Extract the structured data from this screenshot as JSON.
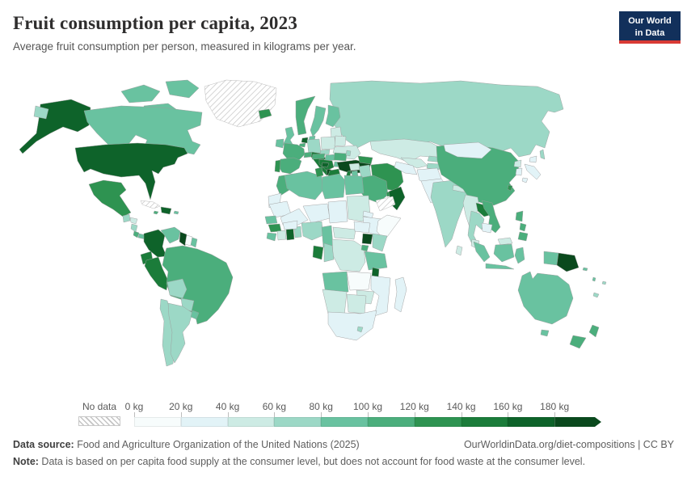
{
  "header": {
    "title": "Fruit consumption per capita, 2023",
    "subtitle": "Average fruit consumption per person, measured in kilograms per year.",
    "logo": {
      "line1": "Our World",
      "line2": "in Data",
      "bg_color": "#12305b",
      "accent_color": "#d93a35"
    }
  },
  "legend": {
    "no_data_label": "No data",
    "tick_labels": [
      "0 kg",
      "20 kg",
      "40 kg",
      "60 kg",
      "80 kg",
      "100 kg",
      "120 kg",
      "140 kg",
      "160 kg",
      "180 kg"
    ]
  },
  "footer": {
    "source_label": "Data source:",
    "source_text": " Food and Agriculture Organization of the United Nations (2025)",
    "link_text": "OurWorldinData.org/diet-compositions | CC BY",
    "note_label": "Note:",
    "note_text": " Data is based on per capita food supply at the consumer level, but does not account for food waste at the consumer level."
  },
  "map": {
    "ocean_color": "#ffffff",
    "border_color": "#9c9c9c",
    "palette": [
      "#f7fcfc",
      "#e2f3f7",
      "#cdebe4",
      "#9cd8c6",
      "#69c2a0",
      "#4bae7c",
      "#2e9351",
      "#1b7c3a",
      "#0e632a",
      "#0a491d"
    ],
    "bin_ranges": [
      "0-20 kg",
      "20-40 kg",
      "40-60 kg",
      "60-80 kg",
      "80-100 kg",
      "100-120 kg",
      "120-140 kg",
      "140-160 kg",
      "160-180 kg",
      "180+ kg"
    ],
    "countries": [
      {
        "id": "greenland",
        "name": "Greenland",
        "bin": "nodata"
      },
      {
        "id": "canada",
        "name": "Canada",
        "bin": 4
      },
      {
        "id": "alaska",
        "name": "United States (Alaska)",
        "bin": 8
      },
      {
        "id": "usa",
        "name": "United States",
        "bin": 8
      },
      {
        "id": "chukotka",
        "name": "Russia (Chukotka)",
        "bin": 3
      },
      {
        "id": "mexico",
        "name": "Mexico",
        "bin": 6
      },
      {
        "id": "guatemala",
        "name": "Guatemala",
        "bin": 3
      },
      {
        "id": "honduras",
        "name": "Honduras",
        "bin": 2
      },
      {
        "id": "nicaragua",
        "name": "Nicaragua",
        "bin": 3
      },
      {
        "id": "costarica",
        "name": "Costa Rica",
        "bin": 5
      },
      {
        "id": "panama",
        "name": "Panama",
        "bin": 4
      },
      {
        "id": "cuba",
        "name": "Cuba",
        "bin": "nodata"
      },
      {
        "id": "jamaica",
        "name": "Jamaica",
        "bin": 5
      },
      {
        "id": "hispaniola",
        "name": "Dominican Republic / Haiti",
        "bin": 8
      },
      {
        "id": "puertorico",
        "name": "Puerto Rico",
        "bin": 4
      },
      {
        "id": "colombia",
        "name": "Colombia",
        "bin": 8
      },
      {
        "id": "venezuela",
        "name": "Venezuela",
        "bin": 4
      },
      {
        "id": "guyana",
        "name": "Guyana",
        "bin": 9
      },
      {
        "id": "suriname",
        "name": "Suriname",
        "bin": 0
      },
      {
        "id": "frguiana",
        "name": "French Guiana",
        "bin": 4
      },
      {
        "id": "ecuador",
        "name": "Ecuador",
        "bin": 7
      },
      {
        "id": "peru",
        "name": "Peru",
        "bin": 7
      },
      {
        "id": "brazil",
        "name": "Brazil",
        "bin": 5
      },
      {
        "id": "bolivia",
        "name": "Bolivia",
        "bin": 3
      },
      {
        "id": "paraguay",
        "name": "Paraguay",
        "bin": 3
      },
      {
        "id": "chile",
        "name": "Chile",
        "bin": 3
      },
      {
        "id": "argentina",
        "name": "Argentina",
        "bin": 3
      },
      {
        "id": "uruguay",
        "name": "Uruguay",
        "bin": 4
      },
      {
        "id": "iceland",
        "name": "Iceland",
        "bin": 6
      },
      {
        "id": "ireland",
        "name": "Ireland",
        "bin": 4
      },
      {
        "id": "uk",
        "name": "United Kingdom",
        "bin": 4
      },
      {
        "id": "norway",
        "name": "Norway",
        "bin": 5
      },
      {
        "id": "sweden",
        "name": "Sweden",
        "bin": 4
      },
      {
        "id": "finland",
        "name": "Finland",
        "bin": 4
      },
      {
        "id": "denmark",
        "name": "Denmark",
        "bin": 4
      },
      {
        "id": "baltics",
        "name": "Baltic states",
        "bin": 2
      },
      {
        "id": "netherlands",
        "name": "Netherlands",
        "bin": 8
      },
      {
        "id": "belgium",
        "name": "Belgium",
        "bin": 5
      },
      {
        "id": "germany",
        "name": "Germany",
        "bin": 3
      },
      {
        "id": "poland",
        "name": "Poland",
        "bin": 2
      },
      {
        "id": "belarus",
        "name": "Belarus",
        "bin": 2
      },
      {
        "id": "ukraine",
        "name": "Ukraine",
        "bin": 2
      },
      {
        "id": "france",
        "name": "France",
        "bin": 5
      },
      {
        "id": "spain",
        "name": "Spain",
        "bin": 5
      },
      {
        "id": "portugal",
        "name": "Portugal",
        "bin": 6
      },
      {
        "id": "italy",
        "name": "Italy",
        "bin": 7
      },
      {
        "id": "switzerland",
        "name": "Switzerland",
        "bin": 5
      },
      {
        "id": "czech",
        "name": "Czechia",
        "bin": 3
      },
      {
        "id": "austria",
        "name": "Austria",
        "bin": 5
      },
      {
        "id": "hungary",
        "name": "Hungary",
        "bin": 4
      },
      {
        "id": "romania",
        "name": "Romania",
        "bin": 5
      },
      {
        "id": "balkans",
        "name": "Croatia / Serbia",
        "bin": 7
      },
      {
        "id": "bosnia",
        "name": "Bosnia and Herzegovina",
        "bin": 8
      },
      {
        "id": "albania",
        "name": "Albania",
        "bin": 9
      },
      {
        "id": "greece",
        "name": "Greece",
        "bin": 7
      },
      {
        "id": "bulgaria",
        "name": "Bulgaria",
        "bin": 4
      },
      {
        "id": "moldova",
        "name": "Moldova",
        "bin": 3
      },
      {
        "id": "turkey",
        "name": "Turkey",
        "bin": 9
      },
      {
        "id": "russia",
        "name": "Russia",
        "bin": 3
      },
      {
        "id": "sakhalin",
        "name": "Russia (Sakhalin)",
        "bin": 3
      },
      {
        "id": "caucasus",
        "name": "Caucasus states",
        "bin": 6
      },
      {
        "id": "syria",
        "name": "Syria",
        "bin": 2
      },
      {
        "id": "israel",
        "name": "Israel",
        "bin": 7
      },
      {
        "id": "jordan",
        "name": "Jordan",
        "bin": 4
      },
      {
        "id": "iraq",
        "name": "Iraq",
        "bin": 3
      },
      {
        "id": "iran",
        "name": "Iran",
        "bin": 6
      },
      {
        "id": "saudi",
        "name": "Saudi Arabia",
        "bin": 5
      },
      {
        "id": "yemen",
        "name": "Yemen",
        "bin": "nodata"
      },
      {
        "id": "oman",
        "name": "Oman",
        "bin": 8
      },
      {
        "id": "uae",
        "name": "United Arab Emirates",
        "bin": 6
      },
      {
        "id": "kazakhstan",
        "name": "Kazakhstan",
        "bin": 2
      },
      {
        "id": "uzbekistan",
        "name": "Uzbekistan",
        "bin": 2
      },
      {
        "id": "turkmenistan",
        "name": "Turkmenistan",
        "bin": 1
      },
      {
        "id": "kyrgyzstan",
        "name": "Kyrgyzstan",
        "bin": 3
      },
      {
        "id": "tajikistan",
        "name": "Tajikistan",
        "bin": 3
      },
      {
        "id": "afghanistan",
        "name": "Afghanistan",
        "bin": 1
      },
      {
        "id": "pakistan",
        "name": "Pakistan",
        "bin": 1
      },
      {
        "id": "india",
        "name": "India",
        "bin": 3
      },
      {
        "id": "nepal",
        "name": "Nepal",
        "bin": 2
      },
      {
        "id": "bangladesh",
        "name": "Bangladesh",
        "bin": 1
      },
      {
        "id": "srilanka",
        "name": "Sri Lanka",
        "bin": 2
      },
      {
        "id": "china",
        "name": "China",
        "bin": 5
      },
      {
        "id": "mongolia",
        "name": "Mongolia",
        "bin": 1
      },
      {
        "id": "nkorea",
        "name": "North Korea",
        "bin": 2
      },
      {
        "id": "skorea",
        "name": "South Korea",
        "bin": 1
      },
      {
        "id": "japan",
        "name": "Japan",
        "bin": 1
      },
      {
        "id": "taiwan",
        "name": "Taiwan",
        "bin": 6
      },
      {
        "id": "myanmar",
        "name": "Myanmar",
        "bin": 2
      },
      {
        "id": "laos",
        "name": "Laos",
        "bin": 7
      },
      {
        "id": "vietnam",
        "name": "Vietnam",
        "bin": 5
      },
      {
        "id": "thailand",
        "name": "Thailand",
        "bin": 3
      },
      {
        "id": "cambodia",
        "name": "Cambodia",
        "bin": 1
      },
      {
        "id": "malaysia",
        "name": "Malaysia",
        "bin": 2
      },
      {
        "id": "indonesia",
        "name": "Indonesia",
        "bin": 4
      },
      {
        "id": "png",
        "name": "Papua New Guinea",
        "bin": 9
      },
      {
        "id": "philippines",
        "name": "Philippines",
        "bin": 5
      },
      {
        "id": "morocco",
        "name": "Morocco",
        "bin": 5
      },
      {
        "id": "wsahara",
        "name": "Western Sahara",
        "bin": 1
      },
      {
        "id": "algeria",
        "name": "Algeria",
        "bin": 4
      },
      {
        "id": "tunisia",
        "name": "Tunisia",
        "bin": 6
      },
      {
        "id": "libya",
        "name": "Libya",
        "bin": 4
      },
      {
        "id": "egypt",
        "name": "Egypt",
        "bin": 4
      },
      {
        "id": "mauritania",
        "name": "Mauritania",
        "bin": 1
      },
      {
        "id": "mali",
        "name": "Mali",
        "bin": 1
      },
      {
        "id": "niger",
        "name": "Niger",
        "bin": 1
      },
      {
        "id": "chad",
        "name": "Chad",
        "bin": 1
      },
      {
        "id": "sudan",
        "name": "Sudan",
        "bin": 2
      },
      {
        "id": "eritrea",
        "name": "Eritrea",
        "bin": 1
      },
      {
        "id": "ethiopia",
        "name": "Ethiopia",
        "bin": 1
      },
      {
        "id": "somalia",
        "name": "Somalia",
        "bin": 0
      },
      {
        "id": "senegal",
        "name": "Senegal",
        "bin": 4
      },
      {
        "id": "guinea",
        "name": "Guinea",
        "bin": 6
      },
      {
        "id": "sierraleone",
        "name": "Sierra Leone / Liberia",
        "bin": 4
      },
      {
        "id": "ivorycoast",
        "name": "Cote d'Ivoire",
        "bin": 2
      },
      {
        "id": "ghana",
        "name": "Ghana",
        "bin": 8
      },
      {
        "id": "togobenin",
        "name": "Togo / Benin",
        "bin": 3
      },
      {
        "id": "burkina",
        "name": "Burkina Faso",
        "bin": 1
      },
      {
        "id": "nigeria",
        "name": "Nigeria",
        "bin": 3
      },
      {
        "id": "cameroon",
        "name": "Cameroon",
        "bin": 4
      },
      {
        "id": "car",
        "name": "Central African Republic",
        "bin": 2
      },
      {
        "id": "ssudan",
        "name": "South Sudan",
        "bin": 1
      },
      {
        "id": "uganda",
        "name": "Uganda",
        "bin": 9
      },
      {
        "id": "kenya",
        "name": "Kenya",
        "bin": 3
      },
      {
        "id": "rwanda",
        "name": "Rwanda / Burundi",
        "bin": 5
      },
      {
        "id": "drc",
        "name": "Democratic Republic of Congo",
        "bin": 2
      },
      {
        "id": "gabon",
        "name": "Gabon",
        "bin": 7
      },
      {
        "id": "congo",
        "name": "Congo",
        "bin": 3
      },
      {
        "id": "tanzania",
        "name": "Tanzania",
        "bin": 4
      },
      {
        "id": "angola",
        "name": "Angola",
        "bin": 4
      },
      {
        "id": "zambia",
        "name": "Zambia",
        "bin": 0
      },
      {
        "id": "malawi",
        "name": "Malawi",
        "bin": 8
      },
      {
        "id": "mozambique",
        "name": "Mozambique",
        "bin": 1
      },
      {
        "id": "zimbabwe",
        "name": "Zimbabwe",
        "bin": 2
      },
      {
        "id": "botswana",
        "name": "Botswana",
        "bin": 2
      },
      {
        "id": "namibia",
        "name": "Namibia",
        "bin": 2
      },
      {
        "id": "southafrica",
        "name": "South Africa",
        "bin": 1
      },
      {
        "id": "lesotho",
        "name": "Lesotho",
        "bin": 3
      },
      {
        "id": "madagascar",
        "name": "Madagascar",
        "bin": 1
      },
      {
        "id": "australia",
        "name": "Australia",
        "bin": 4
      },
      {
        "id": "newzealand",
        "name": "New Zealand",
        "bin": 5
      },
      {
        "id": "newcaledonia",
        "name": "New Caledonia",
        "bin": 3
      },
      {
        "id": "fiji",
        "name": "Fiji",
        "bin": 3
      },
      {
        "id": "solomon",
        "name": "Solomon Islands",
        "bin": 4
      },
      {
        "id": "vanuatu",
        "name": "Vanuatu",
        "bin": 4
      }
    ]
  }
}
